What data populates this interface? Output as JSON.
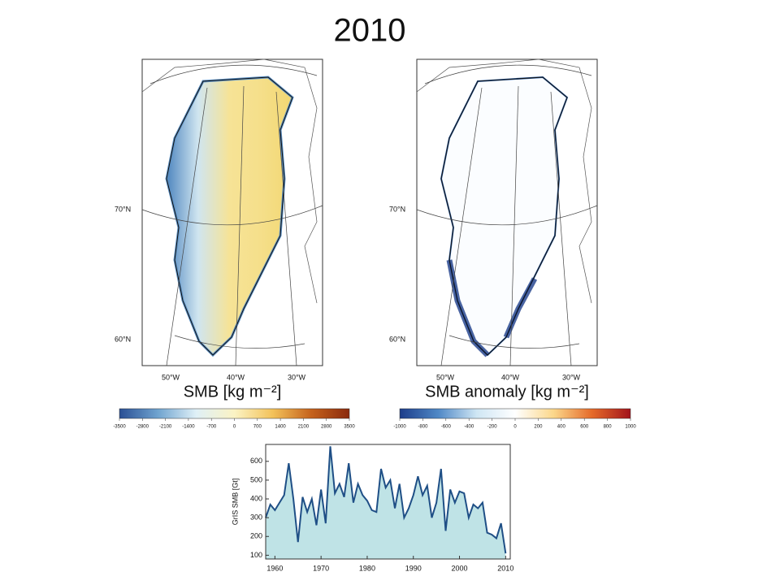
{
  "title": "2010",
  "maps": [
    {
      "label": "SMB [kg m⁻²]",
      "lat_labels": [
        "70°N",
        "60°N"
      ],
      "lon_labels": [
        "50°W",
        "40°W",
        "30°W"
      ]
    },
    {
      "label": "SMB anomaly [kg m⁻²]",
      "lat_labels": [
        "70°N",
        "60°N"
      ],
      "lon_labels": [
        "50°W",
        "40°W",
        "30°W"
      ]
    }
  ],
  "colorbars": [
    {
      "lim": [
        -3500,
        3500
      ],
      "ticks": [
        -3500,
        -2800,
        -2100,
        -1400,
        -700,
        0,
        700,
        1400,
        2100,
        2800,
        3500
      ],
      "colors": [
        "#2a4f94",
        "#6fa3cf",
        "#dff0f7",
        "#fbf3c4",
        "#f3c25a",
        "#c5621c",
        "#8a2a0d"
      ]
    },
    {
      "lim": [
        -1000,
        1000
      ],
      "ticks": [
        -1000,
        -800,
        -600,
        -400,
        -200,
        0,
        200,
        400,
        600,
        800,
        1000
      ],
      "colors": [
        "#1d3d8a",
        "#4f88c6",
        "#cfe6f4",
        "#ffffff",
        "#fbd78a",
        "#e56a2a",
        "#a2141c"
      ]
    }
  ],
  "chart_data": {
    "type": "area",
    "y_label": "GrIS SMB [Gt]",
    "x": [
      1958,
      1959,
      1960,
      1961,
      1962,
      1963,
      1964,
      1965,
      1966,
      1967,
      1968,
      1969,
      1970,
      1971,
      1972,
      1973,
      1974,
      1975,
      1976,
      1977,
      1978,
      1979,
      1980,
      1981,
      1982,
      1983,
      1984,
      1985,
      1986,
      1987,
      1988,
      1989,
      1990,
      1991,
      1992,
      1993,
      1994,
      1995,
      1996,
      1997,
      1998,
      1999,
      2000,
      2001,
      2002,
      2003,
      2004,
      2005,
      2006,
      2007,
      2008,
      2009,
      2010
    ],
    "values": [
      300,
      370,
      340,
      380,
      420,
      590,
      400,
      170,
      410,
      330,
      400,
      260,
      450,
      270,
      680,
      430,
      480,
      410,
      590,
      380,
      480,
      420,
      390,
      340,
      330,
      560,
      460,
      500,
      350,
      480,
      300,
      350,
      420,
      520,
      420,
      470,
      300,
      380,
      560,
      230,
      450,
      380,
      440,
      430,
      300,
      370,
      350,
      380,
      220,
      210,
      190,
      270,
      110
    ],
    "color": "#1f4f86",
    "fill": "#bfe3e6",
    "xlim": [
      1958,
      2011
    ],
    "xticks": [
      1960,
      1970,
      1980,
      1990,
      2000,
      2010
    ],
    "ylim": [
      80,
      690
    ],
    "yticks": [
      100,
      200,
      300,
      400,
      500,
      600
    ]
  }
}
